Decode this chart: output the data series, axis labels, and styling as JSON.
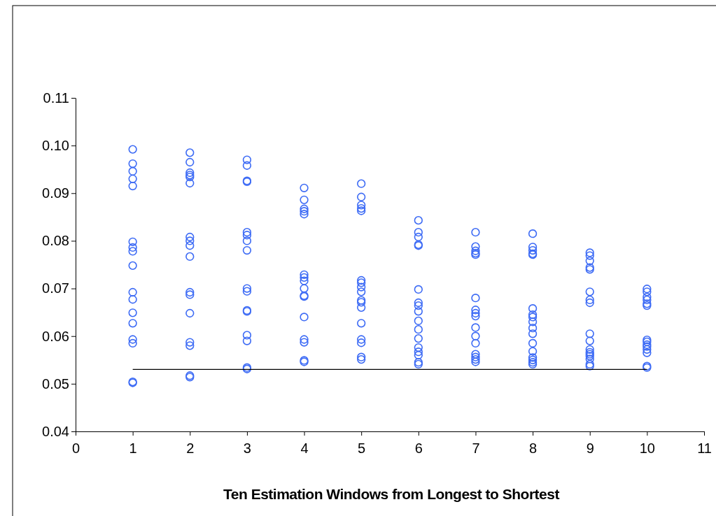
{
  "chart_data": {
    "type": "scatter",
    "xlabel": "Ten Estimation Windows from Longest to Shortest",
    "xlim": [
      0,
      11
    ],
    "xticks": [
      0,
      1,
      2,
      3,
      4,
      5,
      6,
      7,
      8,
      9,
      10,
      11
    ],
    "ylim": [
      0.04,
      0.11
    ],
    "yticks": [
      {
        "value": 0.04,
        "label": "0.04"
      },
      {
        "value": 0.05,
        "label": "0.05"
      },
      {
        "value": 0.06,
        "label": "0.06"
      },
      {
        "value": 0.07,
        "label": "0.07"
      },
      {
        "value": 0.08,
        "label": "0.08"
      },
      {
        "value": 0.09,
        "label": "0.09"
      },
      {
        "value": 0.1,
        "label": "0.10"
      },
      {
        "value": 0.11,
        "label": "0.11"
      }
    ],
    "grid": false,
    "series": [
      {
        "marker": "circle",
        "color": "#3d6bf5",
        "x": [
          1,
          1,
          1,
          1,
          1,
          1,
          1,
          1,
          1,
          1,
          1,
          1,
          1,
          1,
          1,
          1,
          1,
          2,
          2,
          2,
          2,
          2,
          2,
          2,
          2,
          2,
          2,
          2,
          2,
          2,
          2,
          2,
          2,
          2,
          3,
          3,
          3,
          3,
          3,
          3,
          3,
          3,
          3,
          3,
          3,
          3,
          3,
          3,
          3,
          3,
          4,
          4,
          4,
          4,
          4,
          4,
          4,
          4,
          4,
          4,
          4,
          4,
          4,
          4,
          4,
          4,
          5,
          5,
          5,
          5,
          5,
          5,
          5,
          5,
          5,
          5,
          5,
          5,
          5,
          5,
          5,
          5,
          5,
          6,
          6,
          6,
          6,
          6,
          6,
          6,
          6,
          6,
          6,
          6,
          6,
          6,
          6,
          6,
          6,
          6,
          7,
          7,
          7,
          7,
          7,
          7,
          7,
          7,
          7,
          7,
          7,
          7,
          7,
          7,
          7,
          7,
          8,
          8,
          8,
          8,
          8,
          8,
          8,
          8,
          8,
          8,
          8,
          8,
          8,
          8,
          8,
          8,
          8,
          9,
          9,
          9,
          9,
          9,
          9,
          9,
          9,
          9,
          9,
          9,
          9,
          9,
          9,
          9,
          9,
          9,
          10,
          10,
          10,
          10,
          10,
          10,
          10,
          10,
          10,
          10,
          10,
          10,
          10,
          10
        ],
        "values": [
          0.0992,
          0.0962,
          0.0946,
          0.093,
          0.0915,
          0.0798,
          0.0786,
          0.0778,
          0.0748,
          0.0692,
          0.0677,
          0.0649,
          0.0627,
          0.0593,
          0.0585,
          0.0504,
          0.0502,
          0.0985,
          0.0965,
          0.0943,
          0.0938,
          0.0934,
          0.0921,
          0.0808,
          0.08,
          0.079,
          0.0767,
          0.0692,
          0.0687,
          0.0648,
          0.0587,
          0.058,
          0.0517,
          0.0514,
          0.097,
          0.0958,
          0.0926,
          0.0924,
          0.0818,
          0.0812,
          0.08,
          0.078,
          0.07,
          0.0694,
          0.0654,
          0.0652,
          0.0602,
          0.059,
          0.0534,
          0.0531,
          0.0911,
          0.0886,
          0.0867,
          0.0862,
          0.0856,
          0.0729,
          0.0723,
          0.0716,
          0.07,
          0.0685,
          0.0683,
          0.064,
          0.0593,
          0.0587,
          0.0549,
          0.0546,
          0.092,
          0.0892,
          0.0875,
          0.0868,
          0.0863,
          0.0717,
          0.0712,
          0.0703,
          0.0693,
          0.0675,
          0.0671,
          0.066,
          0.0627,
          0.0593,
          0.0586,
          0.0556,
          0.0551,
          0.0843,
          0.0818,
          0.0808,
          0.0792,
          0.079,
          0.0698,
          0.067,
          0.0664,
          0.0652,
          0.0632,
          0.0614,
          0.0595,
          0.0576,
          0.0567,
          0.056,
          0.0545,
          0.0541,
          0.0818,
          0.0788,
          0.0779,
          0.0774,
          0.0771,
          0.068,
          0.0655,
          0.0648,
          0.0642,
          0.0618,
          0.06,
          0.0585,
          0.0562,
          0.0556,
          0.0551,
          0.0546,
          0.0815,
          0.0787,
          0.078,
          0.0773,
          0.0771,
          0.0658,
          0.0645,
          0.064,
          0.063,
          0.0617,
          0.0605,
          0.0585,
          0.0568,
          0.0555,
          0.055,
          0.0545,
          0.0541,
          0.0775,
          0.0769,
          0.0758,
          0.0744,
          0.074,
          0.0693,
          0.0676,
          0.067,
          0.0605,
          0.059,
          0.0572,
          0.0566,
          0.0562,
          0.0558,
          0.0552,
          0.0541,
          0.0537,
          0.0699,
          0.0693,
          0.0682,
          0.0676,
          0.0668,
          0.0664,
          0.0592,
          0.0588,
          0.0582,
          0.0578,
          0.0572,
          0.0565,
          0.0537,
          0.0534
        ]
      },
      {
        "type": "line",
        "marker": "none",
        "color": "#000000",
        "x": [
          1,
          10
        ],
        "values": [
          0.053,
          0.053
        ]
      }
    ]
  }
}
